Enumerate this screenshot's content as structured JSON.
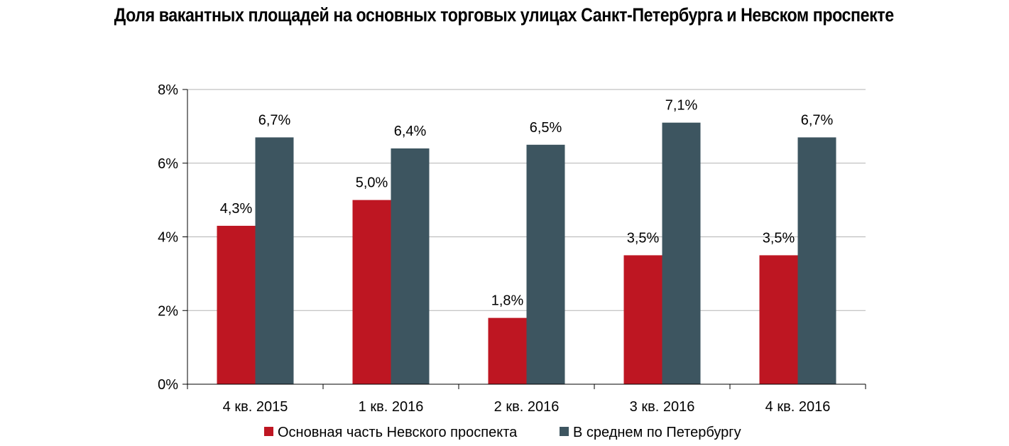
{
  "chart_data": {
    "type": "bar",
    "title": "Доля вакантных площадей на основных торговых улицах Санкт-Петербурга и Невском проспекте",
    "categories": [
      "4 кв. 2015",
      "1 кв. 2016",
      "2 кв. 2016",
      "3 кв. 2016",
      "4 кв. 2016"
    ],
    "series": [
      {
        "name": "Основная часть Невского проспекта",
        "color": "#be1622",
        "values": [
          4.3,
          5.0,
          1.8,
          3.5,
          3.5
        ],
        "labels": [
          "4,3%",
          "5,0%",
          "1,8%",
          "3,5%",
          "3,5%"
        ]
      },
      {
        "name": "В среднем по Петербургу",
        "color": "#3d5560",
        "values": [
          6.7,
          6.4,
          6.5,
          7.1,
          6.7
        ],
        "labels": [
          "6,7%",
          "6,4%",
          "6,5%",
          "7,1%",
          "6,7%"
        ]
      }
    ],
    "ylim": [
      0,
      8
    ],
    "yticks": [
      "0%",
      "2%",
      "4%",
      "6%",
      "8%"
    ],
    "xlabel": "",
    "ylabel": "",
    "grid": true,
    "legend": "bottom-center"
  }
}
